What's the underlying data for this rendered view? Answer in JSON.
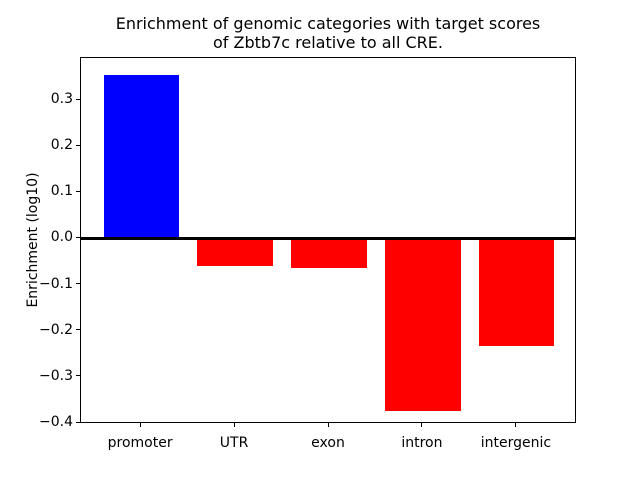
{
  "title": {
    "line1": "Enrichment of genomic categories with target scores",
    "line2": "of Zbtb7c relative to all CRE."
  },
  "chart_data": {
    "type": "bar",
    "title": "Enrichment of genomic categories with target scores of Zbtb7c relative to all CRE.",
    "categories": [
      "promoter",
      "UTR",
      "exon",
      "intron",
      "intergenic"
    ],
    "values": [
      0.354,
      -0.059,
      -0.065,
      -0.374,
      -0.233
    ],
    "bar_colors": [
      "#0000ff",
      "#ff0000",
      "#ff0000",
      "#ff0000",
      "#ff0000"
    ],
    "positive_color": "#0000ff",
    "negative_color": "#ff0000",
    "xlabel": "",
    "ylabel": "Enrichment (log10)",
    "ylim": [
      -0.402,
      0.391
    ],
    "xlim": [
      -0.64,
      4.64
    ],
    "bar_width_units": 0.8,
    "yticks": [
      0.3,
      0.2,
      0.1,
      0.0,
      -0.1,
      -0.2,
      -0.3,
      -0.4
    ],
    "ytick_labels": [
      "0.3",
      "0.2",
      "0.1",
      "0.0",
      "−0.1",
      "−0.2",
      "−0.3",
      "−0.4"
    ],
    "zero_line": true,
    "zero_line_color": "#000000",
    "grid": false,
    "legend": "none",
    "plot_background": "#ffffff"
  }
}
